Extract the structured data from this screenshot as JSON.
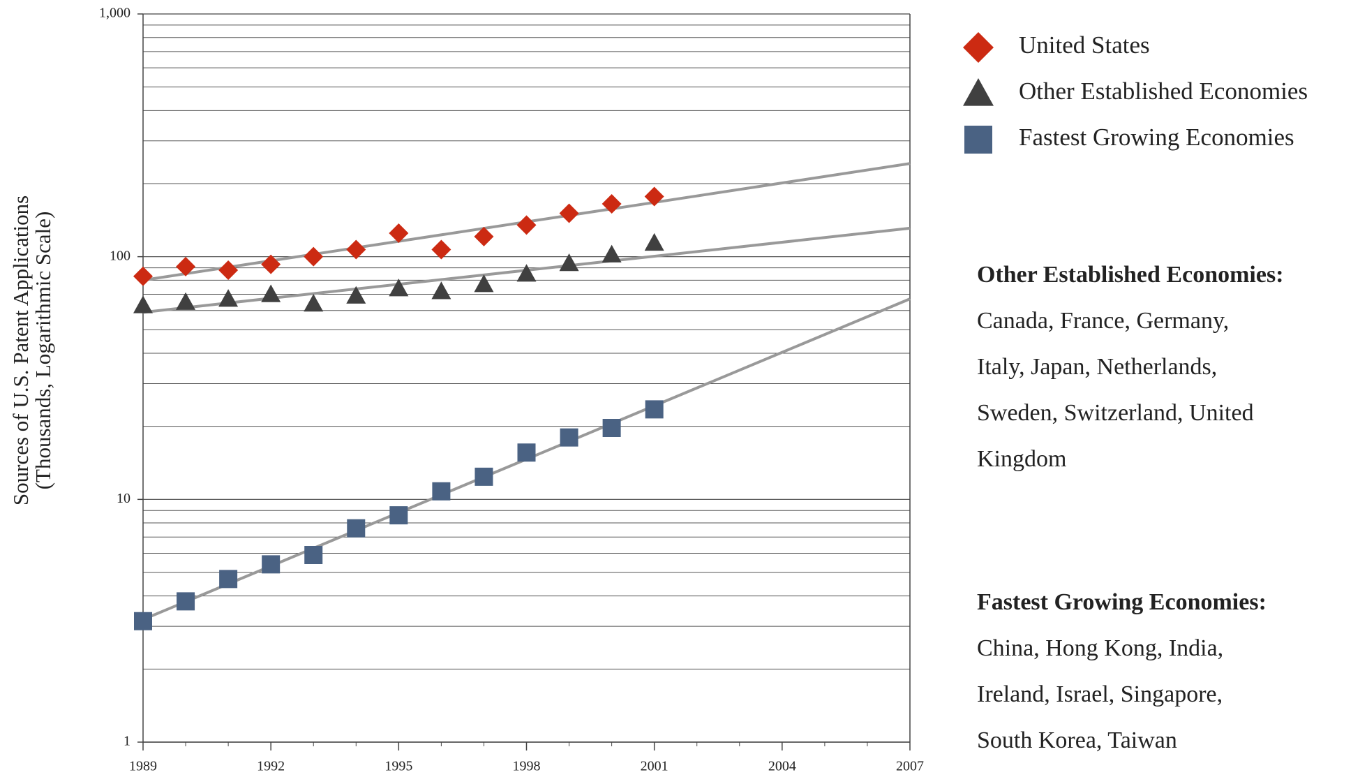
{
  "chart_data": {
    "type": "scatter",
    "y_label_lines": [
      "Sources of U.S. Patent Applications",
      "(Thousands, Logarithmic Scale)"
    ],
    "x": [
      1989,
      1990,
      1991,
      1992,
      1993,
      1994,
      1995,
      1996,
      1997,
      1998,
      1999,
      2000,
      2001
    ],
    "series": [
      {
        "name": "United States",
        "color": "#cc2a12",
        "marker": "diamond",
        "values": [
          83,
          91,
          88,
          93,
          100,
          107,
          125,
          107,
          121,
          135,
          151,
          165,
          177
        ]
      },
      {
        "name": "Other Established Economies",
        "color": "#404040",
        "marker": "triangle",
        "values": [
          63,
          65,
          67,
          70,
          64,
          69,
          74,
          72,
          77,
          85,
          94,
          102,
          114
        ]
      },
      {
        "name": "Fastest Growing Economies",
        "color": "#4a6283",
        "marker": "square",
        "values": [
          3.15,
          3.8,
          4.7,
          5.4,
          5.9,
          7.6,
          8.6,
          10.8,
          12.4,
          15.6,
          18,
          19.7,
          23.5
        ]
      }
    ],
    "trend_lines": [
      {
        "color": "#999999",
        "x": [
          1989,
          2007
        ],
        "values": [
          80,
          242
        ]
      },
      {
        "color": "#999999",
        "x": [
          1989,
          2007
        ],
        "values": [
          59,
          131
        ]
      },
      {
        "color": "#999999",
        "x": [
          1989,
          2007
        ],
        "values": [
          3.2,
          67
        ]
      }
    ],
    "xlim": [
      1989,
      2007
    ],
    "xticks": [
      1989,
      1992,
      1995,
      1998,
      2001,
      2004,
      2007
    ],
    "ylim": [
      1,
      1000
    ],
    "yticks": [
      1,
      10,
      100,
      {
        "value": 1000,
        "label": "1,000"
      }
    ],
    "log_y": true,
    "grid": true,
    "minor_grid": true,
    "legend": "right",
    "notes": [
      {
        "title": "Other Established Economies:",
        "lines": [
          "Canada, France, Germany,",
          "Italy, Japan, Netherlands,",
          "Sweden, Switzerland, United",
          "Kingdom"
        ]
      },
      {
        "title": "Fastest Growing Economies:",
        "lines": [
          "China, Hong Kong, India,",
          "Ireland, Israel, Singapore,",
          "South Korea, Taiwan"
        ]
      }
    ]
  }
}
